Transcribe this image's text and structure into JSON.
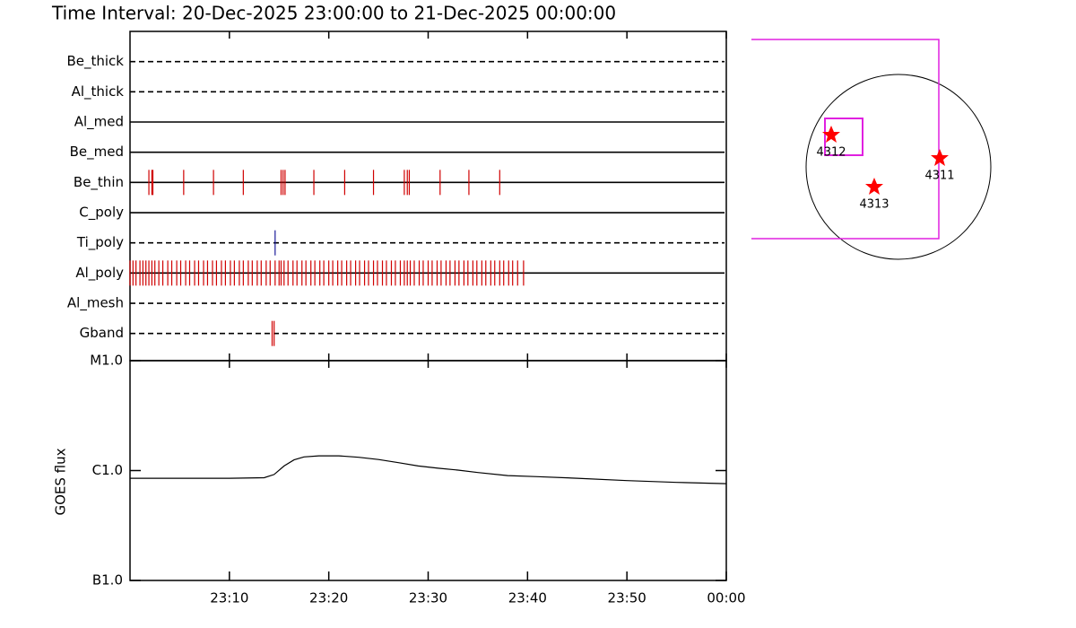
{
  "title": "Time Interval: 20-Dec-2025 23:00:00 to 21-Dec-2025 00:00:00",
  "chart_data": [
    {
      "type": "timeline",
      "xlim": [
        0,
        60
      ],
      "filters": [
        {
          "name": "Be_thick",
          "style": "dashed",
          "color": "#d00000",
          "events": []
        },
        {
          "name": "Al_thick",
          "style": "dashed",
          "color": "#d00000",
          "events": []
        },
        {
          "name": "Al_med",
          "style": "solid",
          "color": "#d00000",
          "events": []
        },
        {
          "name": "Be_med",
          "style": "solid",
          "color": "#d00000",
          "events": []
        },
        {
          "name": "Be_thin",
          "style": "solid",
          "color": "#d00000",
          "events": [
            1.9,
            2.2,
            2.3,
            5.4,
            8.4,
            11.4,
            15.2,
            15.4,
            15.6,
            18.5,
            21.6,
            24.5,
            27.6,
            27.9,
            28.1,
            31.2,
            34.1,
            37.2
          ]
        },
        {
          "name": "C_poly",
          "style": "solid",
          "color": "#d00000",
          "events": []
        },
        {
          "name": "Ti_poly",
          "style": "dashed",
          "color": "#1a1a9a",
          "events": [
            14.6
          ]
        },
        {
          "name": "Al_poly",
          "style": "solid",
          "color": "#d00000",
          "events": [
            0.0,
            0.3,
            0.6,
            1.0,
            1.3,
            1.6,
            1.9,
            2.2,
            2.5,
            2.9,
            3.3,
            3.8,
            4.2,
            4.7,
            5.1,
            5.6,
            6.0,
            6.5,
            6.9,
            7.4,
            7.8,
            8.3,
            8.7,
            9.2,
            9.6,
            10.1,
            10.5,
            11.0,
            11.4,
            11.9,
            12.3,
            12.8,
            13.2,
            13.7,
            14.1,
            14.6,
            15.0,
            15.2,
            15.5,
            15.9,
            16.4,
            16.8,
            17.3,
            17.7,
            18.2,
            18.6,
            19.1,
            19.5,
            20.0,
            20.4,
            20.9,
            21.3,
            21.8,
            22.2,
            22.7,
            23.1,
            23.6,
            24.0,
            24.5,
            24.9,
            25.4,
            25.8,
            26.3,
            26.7,
            27.2,
            27.6,
            27.9,
            28.2,
            28.6,
            29.1,
            29.5,
            30.0,
            30.4,
            30.9,
            31.3,
            31.8,
            32.2,
            32.7,
            33.1,
            33.6,
            34.0,
            34.5,
            34.9,
            35.4,
            35.8,
            36.3,
            36.7,
            37.2,
            37.6,
            38.1,
            38.5,
            39.0,
            39.6
          ]
        },
        {
          "name": "Al_mesh",
          "style": "dashed",
          "color": "#d00000",
          "events": []
        },
        {
          "name": "Gband",
          "style": "dashed",
          "color": "#d00000",
          "events": [
            14.3,
            14.5
          ]
        }
      ]
    },
    {
      "type": "line",
      "ylabel": "GOES flux",
      "log_scale": true,
      "color": "#000000",
      "xlim": [
        0,
        60
      ],
      "xticks": [
        {
          "value": 10,
          "label": "23:10"
        },
        {
          "value": 20,
          "label": "23:20"
        },
        {
          "value": 30,
          "label": "23:30"
        },
        {
          "value": 40,
          "label": "23:40"
        },
        {
          "value": 50,
          "label": "23:50"
        },
        {
          "value": 60,
          "label": "00:00"
        }
      ],
      "ylim": [
        1e-07,
        1e-05
      ],
      "yticks": [
        {
          "value": 1e-07,
          "label": "B1.0"
        },
        {
          "value": 1e-06,
          "label": "C1.0"
        },
        {
          "value": 1e-05,
          "label": "M1.0"
        }
      ],
      "x": [
        0,
        5,
        10,
        13.5,
        14.5,
        15.5,
        16.5,
        17.5,
        19,
        21,
        23,
        25,
        27,
        29,
        31,
        33,
        35,
        38,
        41,
        45,
        50,
        55,
        60
      ],
      "values": [
        8.5e-07,
        8.5e-07,
        8.5e-07,
        8.6e-07,
        9.2e-07,
        1.1e-06,
        1.25e-06,
        1.33e-06,
        1.36e-06,
        1.36e-06,
        1.32e-06,
        1.26e-06,
        1.18e-06,
        1.1e-06,
        1.05e-06,
        1.01e-06,
        9.6e-07,
        9e-07,
        8.8e-07,
        8.5e-07,
        8.1e-07,
        7.8e-07,
        7.6e-07
      ]
    }
  ],
  "sun_map": {
    "active_regions": [
      "4312",
      "4311",
      "4313"
    ]
  }
}
